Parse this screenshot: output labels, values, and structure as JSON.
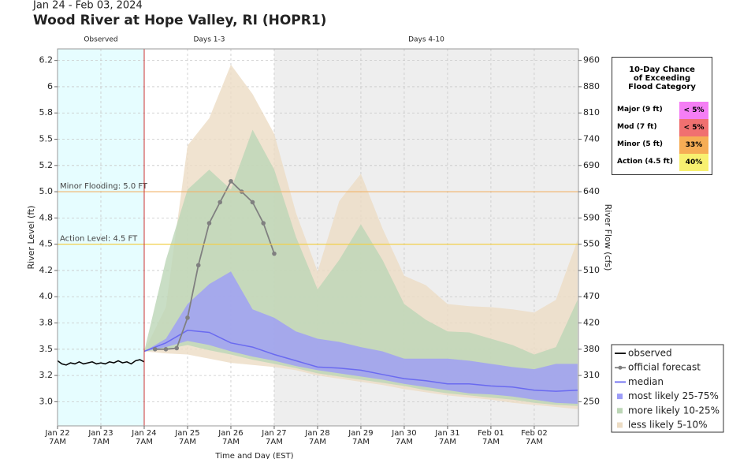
{
  "chart_data": {
    "type": "hydrograph",
    "date_range": "Jan 24 - Feb 03, 2024",
    "title": "Wood River at Hope Valley, RI (HOPR1)",
    "xlabel": "Time and Day (EST)",
    "ylabel": "River Level (ft)",
    "y2label": "River Flow (cfs)",
    "xlim": [
      0,
      12.02
    ],
    "ylim": [
      2.77,
      6.36
    ],
    "grid": true,
    "xticks": [
      {
        "value": 0,
        "label": "Jan 22\n7AM"
      },
      {
        "value": 1,
        "label": "Jan 23\n7AM"
      },
      {
        "value": 2,
        "label": "Jan 24\n7AM"
      },
      {
        "value": 3,
        "label": "Jan 25\n7AM"
      },
      {
        "value": 4,
        "label": "Jan 26\n7AM"
      },
      {
        "value": 5,
        "label": "Jan 27\n7AM"
      },
      {
        "value": 6,
        "label": "Jan 28\n7AM"
      },
      {
        "value": 7,
        "label": "Jan 29\n7AM"
      },
      {
        "value": 8,
        "label": "Jan 30\n7AM"
      },
      {
        "value": 9,
        "label": "Jan 31\n7AM"
      },
      {
        "value": 10,
        "label": "Feb 01\n7AM"
      },
      {
        "value": 11,
        "label": "Feb 02\n7AM"
      }
    ],
    "yticks": [
      {
        "value": 6.25,
        "label": "6.2"
      },
      6.0,
      {
        "value": 5.75,
        "label": "5.8"
      },
      5.5,
      {
        "value": 5.25,
        "label": "5.2"
      },
      {
        "value": 5.0,
        "label": "5.0"
      },
      {
        "value": 4.75,
        "label": "4.8"
      },
      4.5,
      {
        "value": 4.25,
        "label": "4.2"
      },
      {
        "value": 4.0,
        "label": "4.0"
      },
      {
        "value": 3.75,
        "label": "3.8"
      },
      3.5,
      {
        "value": 3.25,
        "label": "3.2"
      },
      {
        "value": 3.0,
        "label": "3.0"
      }
    ],
    "y2ticks": [
      960,
      880,
      810,
      740,
      690,
      640,
      590,
      550,
      510,
      470,
      420,
      380,
      310,
      250
    ],
    "regions": [
      {
        "label": "Observed",
        "from": 0,
        "to": 2,
        "color": "#e6fdff"
      },
      {
        "label": "Days 1-3",
        "from": 2,
        "to": 5,
        "color": "#ffffff"
      },
      {
        "label": "Days 4-10",
        "from": 5,
        "to": 12.02,
        "color": "#eeeeee"
      }
    ],
    "now_line": {
      "value": 2,
      "color": "#cc3333"
    },
    "thresholds": [
      {
        "value": 5.0,
        "label": "Minor Flooding: 5.0 FT",
        "color": "#f2b36a"
      },
      {
        "value": 4.5,
        "label": "Action Level: 4.5 FT",
        "color": "#f2d04a"
      }
    ],
    "series": [
      {
        "name": "less likely 5-10%",
        "kind": "band",
        "color": "#ecdcc4",
        "x": [
          2,
          2.5,
          3,
          3.5,
          4,
          4.5,
          5,
          5.5,
          6,
          6.5,
          7,
          7.5,
          8,
          8.5,
          9,
          9.5,
          10,
          10.5,
          11,
          11.5,
          12
        ],
        "upper": [
          3.48,
          3.9,
          5.44,
          5.7,
          6.21,
          5.93,
          5.55,
          4.8,
          4.24,
          4.91,
          5.17,
          4.65,
          4.2,
          4.11,
          3.93,
          3.91,
          3.9,
          3.88,
          3.85,
          3.97,
          4.54
        ],
        "lower": [
          3.48,
          3.46,
          3.45,
          3.41,
          3.37,
          3.35,
          3.33,
          3.3,
          3.25,
          3.22,
          3.19,
          3.16,
          3.12,
          3.09,
          3.06,
          3.04,
          3.02,
          2.99,
          2.97,
          2.95,
          2.93
        ]
      },
      {
        "name": "more likely 10-25%",
        "kind": "band",
        "color": "#bcd6b6",
        "x": [
          2,
          2.5,
          3,
          3.5,
          4,
          4.5,
          5,
          5.5,
          6,
          6.5,
          7,
          7.5,
          8,
          8.5,
          9,
          9.5,
          10,
          10.5,
          11,
          11.5,
          12
        ],
        "upper": [
          3.48,
          4.35,
          5.02,
          5.21,
          5.02,
          5.59,
          5.21,
          4.57,
          4.07,
          4.35,
          4.69,
          4.35,
          3.93,
          3.78,
          3.67,
          3.66,
          3.6,
          3.54,
          3.45,
          3.52,
          3.97
        ],
        "lower": [
          3.48,
          3.5,
          3.54,
          3.49,
          3.45,
          3.4,
          3.36,
          3.32,
          3.27,
          3.24,
          3.21,
          3.18,
          3.15,
          3.11,
          3.08,
          3.06,
          3.04,
          3.02,
          2.99,
          2.97,
          2.96
        ]
      },
      {
        "name": "most likely 25-75%",
        "kind": "band",
        "color": "#9c9cf8",
        "x": [
          2,
          2.5,
          3,
          3.5,
          4,
          4.5,
          5,
          5.5,
          6,
          6.5,
          7,
          7.5,
          8,
          8.5,
          9,
          9.5,
          10,
          10.5,
          11,
          11.5,
          12
        ],
        "upper": [
          3.48,
          3.6,
          3.93,
          4.12,
          4.24,
          3.88,
          3.8,
          3.67,
          3.6,
          3.57,
          3.52,
          3.48,
          3.41,
          3.41,
          3.41,
          3.39,
          3.36,
          3.33,
          3.31,
          3.36,
          3.36
        ],
        "lower": [
          3.48,
          3.52,
          3.58,
          3.54,
          3.48,
          3.43,
          3.39,
          3.34,
          3.3,
          3.27,
          3.24,
          3.21,
          3.17,
          3.14,
          3.11,
          3.08,
          3.07,
          3.05,
          3.02,
          2.99,
          2.98
        ]
      },
      {
        "name": "median",
        "kind": "line",
        "color": "#6a6af0",
        "x": [
          2,
          2.5,
          3,
          3.5,
          4,
          4.5,
          5,
          5.5,
          6,
          6.5,
          7,
          7.5,
          8,
          8.5,
          9,
          9.5,
          10,
          10.5,
          11,
          11.5,
          12
        ],
        "values": [
          3.48,
          3.56,
          3.68,
          3.66,
          3.56,
          3.52,
          3.45,
          3.39,
          3.33,
          3.32,
          3.3,
          3.26,
          3.22,
          3.2,
          3.17,
          3.17,
          3.15,
          3.14,
          3.11,
          3.1,
          3.11
        ]
      },
      {
        "name": "official forecast",
        "kind": "points",
        "color": "#808080",
        "x": [
          2.25,
          2.5,
          2.75,
          3,
          3.25,
          3.5,
          3.75,
          4,
          4.25,
          4.5,
          4.75,
          5
        ],
        "values": [
          3.5,
          3.5,
          3.51,
          3.8,
          4.3,
          4.7,
          4.9,
          5.1,
          5.0,
          4.9,
          4.7,
          4.41
        ]
      },
      {
        "name": "observed",
        "kind": "line",
        "color": "#000000",
        "x": [
          0,
          0.1,
          0.2,
          0.3,
          0.4,
          0.5,
          0.6,
          0.7,
          0.8,
          0.9,
          1,
          1.1,
          1.2,
          1.3,
          1.4,
          1.5,
          1.6,
          1.7,
          1.8,
          1.9,
          2
        ],
        "values": [
          3.39,
          3.36,
          3.35,
          3.37,
          3.36,
          3.38,
          3.36,
          3.37,
          3.38,
          3.36,
          3.37,
          3.36,
          3.38,
          3.37,
          3.39,
          3.37,
          3.38,
          3.36,
          3.39,
          3.4,
          3.38
        ]
      }
    ],
    "legend_order": [
      5,
      4,
      3,
      2,
      1,
      0
    ],
    "flood_table": {
      "title": "10-Day Chance of Exceeding Flood Category",
      "rows": [
        {
          "label": "Major (9 ft)",
          "chance": "< 5%",
          "color": "#f57ef5"
        },
        {
          "label": "Mod (7 ft)",
          "chance": "< 5%",
          "color": "#f07070"
        },
        {
          "label": "Minor (5 ft)",
          "chance": "33%",
          "color": "#f6ad55"
        },
        {
          "label": "Action (4.5 ft)",
          "chance": "40%",
          "color": "#f8f070"
        }
      ]
    }
  }
}
